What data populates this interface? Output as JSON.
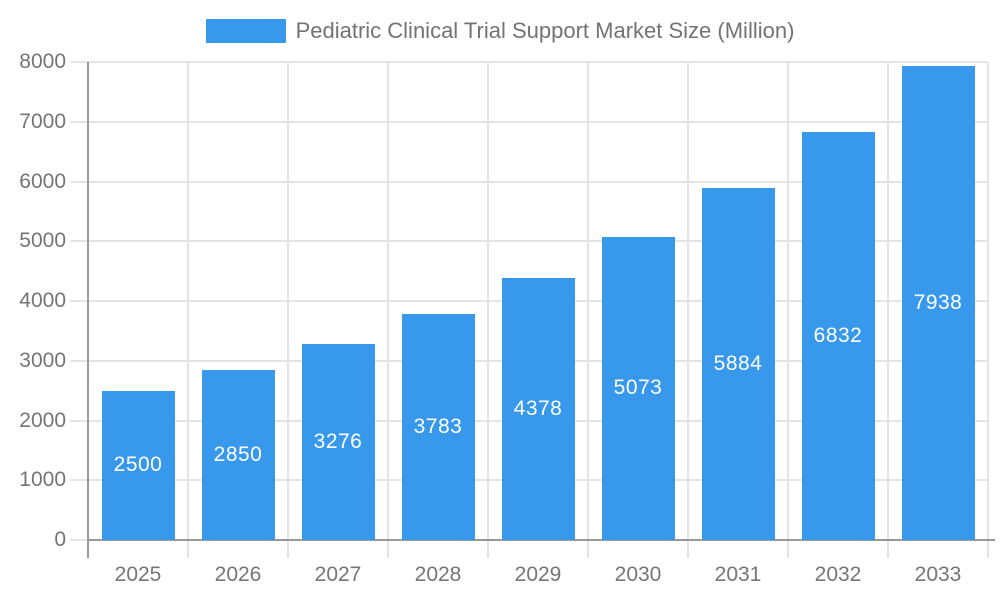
{
  "legend": {
    "label": "Pediatric Clinical Trial Support Market Size (Million)"
  },
  "chart_data": {
    "type": "bar",
    "title": "Pediatric Clinical Trial Support Market Size (Million)",
    "categories": [
      "2025",
      "2026",
      "2027",
      "2028",
      "2029",
      "2030",
      "2031",
      "2032",
      "2033"
    ],
    "values": [
      2500,
      2850,
      3276,
      3783,
      4378,
      5073,
      5884,
      6832,
      7938
    ],
    "xlabel": "",
    "ylabel": "",
    "ylim": [
      0,
      8000
    ],
    "yticks": [
      0,
      1000,
      2000,
      3000,
      4000,
      5000,
      6000,
      7000,
      8000
    ],
    "grid": true,
    "legend_position": "top",
    "value_label_position": "inside-center",
    "colors": {
      "bar": "#3899EC",
      "bar_label": "#ffffff",
      "axis": "#999999",
      "grid": "#e4e4e4",
      "text": "#757575",
      "background": "#ffffff"
    }
  }
}
